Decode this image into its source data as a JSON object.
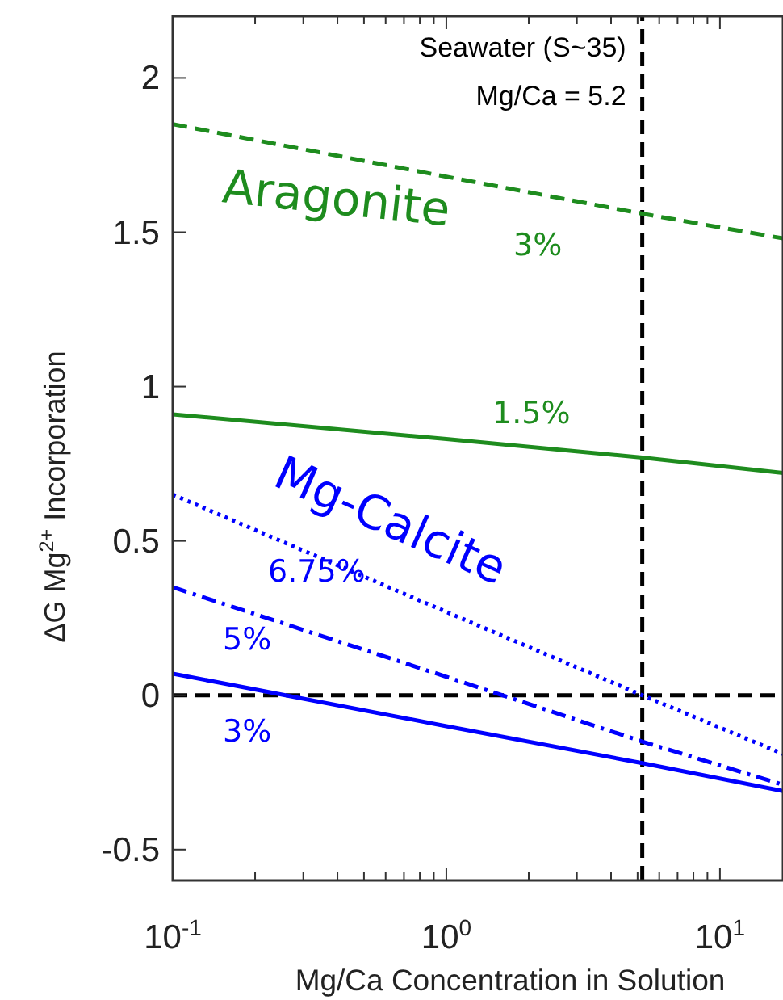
{
  "chart_data": {
    "type": "line",
    "xlabel": "Mg/Ca Concentration in Solution",
    "ylabel": "ΔG Mg$^{2+}$ Incorporation",
    "log": "x",
    "xlim": [
      0.1,
      17
    ],
    "ylim": [
      -0.6,
      2.2
    ],
    "xticks": [
      {
        "value": 0.1,
        "label": "10$^{-1}$"
      },
      {
        "value": 0.2,
        "label": null
      },
      {
        "value": 0.3,
        "label": null
      },
      {
        "value": 0.4,
        "label": null
      },
      {
        "value": 0.5,
        "label": null
      },
      {
        "value": 0.6,
        "label": null
      },
      {
        "value": 0.7,
        "label": null
      },
      {
        "value": 0.8,
        "label": null
      },
      {
        "value": 0.9,
        "label": null
      },
      {
        "value": 1,
        "label": "10$^{0}$"
      },
      {
        "value": 2,
        "label": null
      },
      {
        "value": 3,
        "label": null
      },
      {
        "value": 4,
        "label": null
      },
      {
        "value": 5,
        "label": null
      },
      {
        "value": 6,
        "label": null
      },
      {
        "value": 7,
        "label": null
      },
      {
        "value": 8,
        "label": null
      },
      {
        "value": 9,
        "label": null
      },
      {
        "value": 10,
        "label": "10$^{1}$"
      }
    ],
    "yticks": [
      -0.5,
      0,
      0.5,
      1,
      1.5,
      2
    ],
    "grid": false,
    "marker": "none",
    "x": [
      0.1,
      1,
      5.2,
      17
    ],
    "series": [
      {
        "name": "3%",
        "color": "#1e8c1e",
        "line_style": "dashed",
        "values": [
          1.85,
          1.68,
          1.56,
          1.48
        ]
      },
      {
        "name": "1.5%",
        "color": "#1e8c1e",
        "line_style": "solid",
        "values": [
          0.91,
          0.83,
          0.77,
          0.72
        ]
      },
      {
        "name": "6.75%",
        "color": "#0000ff",
        "line_style": "dotted",
        "values": [
          0.65,
          0.27,
          0.0,
          -0.19
        ]
      },
      {
        "name": "5%",
        "color": "#0000ff",
        "line_style": "dashdot",
        "values": [
          0.35,
          0.06,
          -0.15,
          -0.29
        ]
      },
      {
        "name": "3%",
        "color": "#0000ff",
        "line_style": "solid",
        "values": [
          0.07,
          -0.1,
          -0.22,
          -0.31
        ]
      }
    ],
    "ref_lines": [
      {
        "axis": "x",
        "value": 5.2,
        "label": "Seawater (S~35)\nMg/Ca = 5.2",
        "color": "#000000",
        "line_style": "dashed"
      },
      {
        "axis": "y",
        "value": 0,
        "color": "#000000",
        "line_style": "dashed"
      }
    ],
    "annotations": [
      "Aragonite",
      "Mg-Calcite"
    ]
  }
}
